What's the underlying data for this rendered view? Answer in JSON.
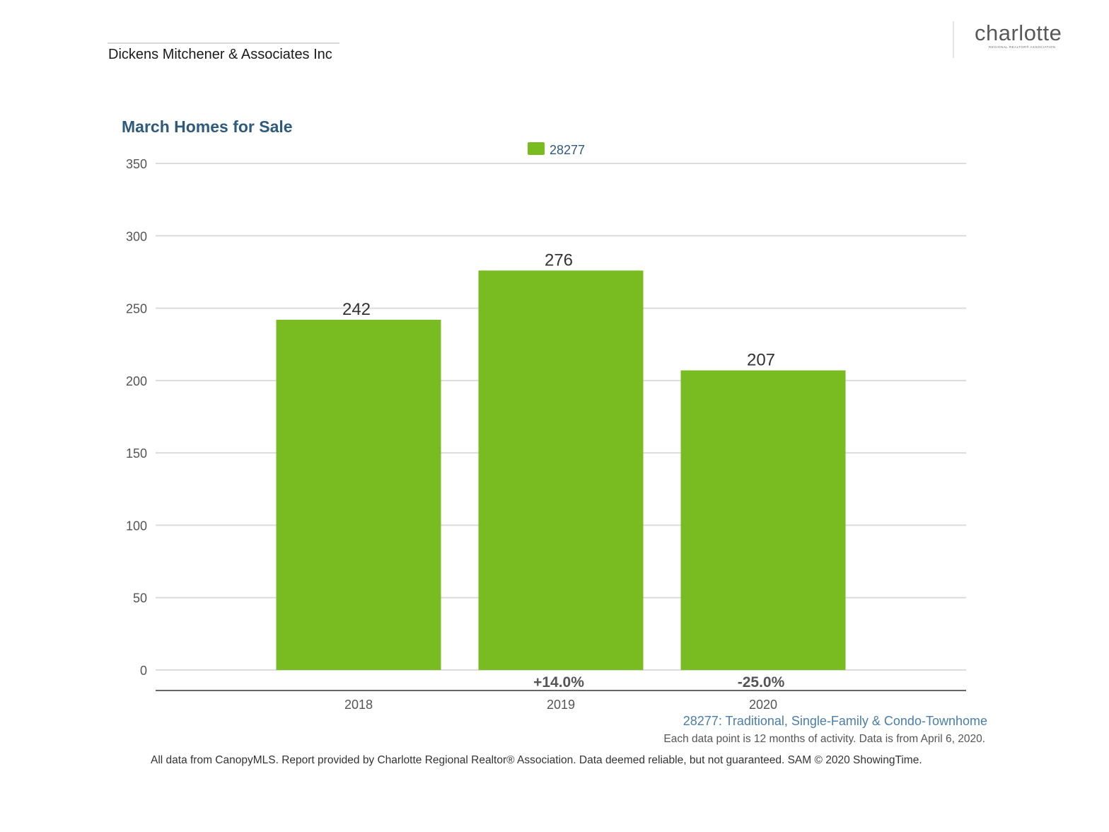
{
  "header": {
    "agent": "Dickens Mitchener & Associates Inc",
    "logo_word": "charlotte",
    "logo_sub": "REGIONAL REALTOR® ASSOCIATION"
  },
  "chart_data": {
    "type": "bar",
    "title": "March Homes for Sale",
    "categories": [
      "2018",
      "2019",
      "2020"
    ],
    "series": [
      {
        "name": "28277",
        "values": [
          242,
          276,
          207
        ],
        "color": "#78bc22"
      }
    ],
    "data_labels": [
      "242",
      "276",
      "207"
    ],
    "change_labels": [
      "",
      "+14.0%",
      "-25.0%"
    ],
    "yticks": [
      "0",
      "50",
      "100",
      "150",
      "200",
      "250",
      "300",
      "350"
    ],
    "ylim": [
      0,
      350
    ],
    "grid": true,
    "legend": "top-center",
    "xlabel": "",
    "ylabel": ""
  },
  "footer": {
    "series_note": "28277: Traditional, Single-Family & Condo-Townhome",
    "activity_note": "Each data point is 12 months of activity. Data is from April 6, 2020.",
    "source": "All data from CanopyMLS. Report provided by Charlotte Regional Realtor® Association. Data deemed reliable, but not guaranteed. SAM © 2020 ShowingTime."
  }
}
